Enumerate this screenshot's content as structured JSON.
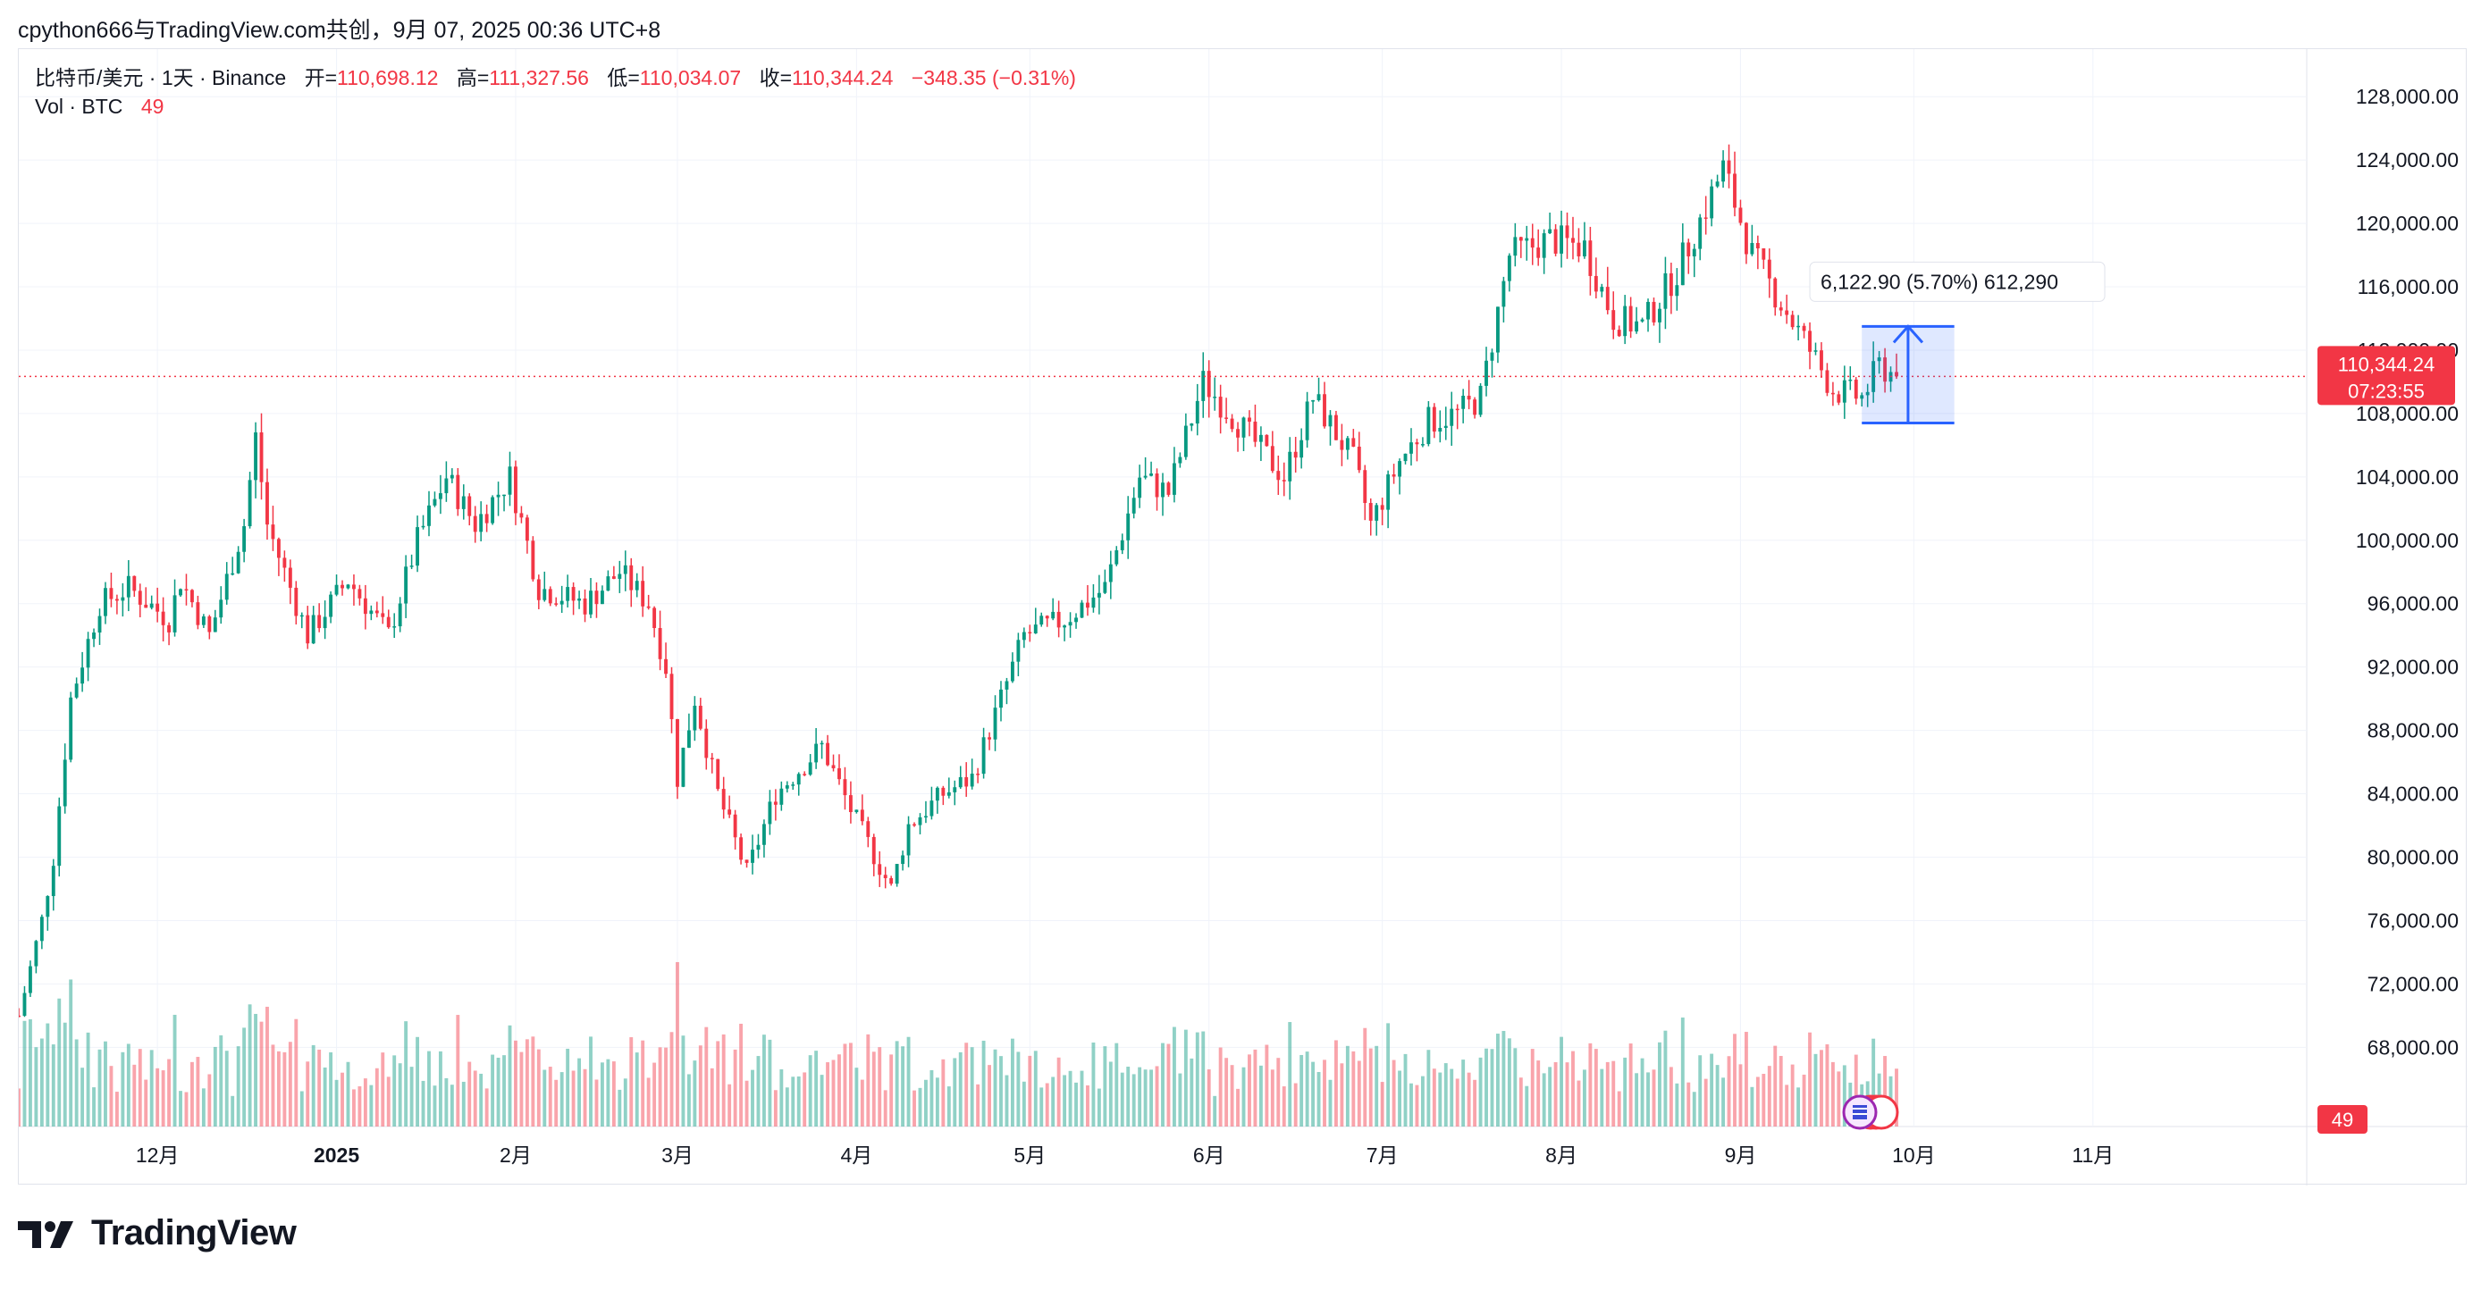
{
  "header": {
    "caption": "cpython666与TradingView.com共创，9月 07, 2025 00:36 UTC+8"
  },
  "legend": {
    "symbol": "比特币/美元 · 1天 · Binance",
    "open_label": "开=",
    "open": "110,698.12",
    "high_label": "高=",
    "high": "111,327.56",
    "low_label": "低=",
    "low": "110,034.07",
    "close_label": "收=",
    "close": "110,344.24",
    "change": "−348.35 (−0.31%)",
    "vol_label": "Vol · BTC",
    "vol_value": "49"
  },
  "price_label": {
    "price": "110,344.24",
    "countdown": "07:23:55"
  },
  "volume_badge": "49",
  "measure_label": "6,122.90 (5.70%) 612,290",
  "brand": {
    "name": "TradingView"
  },
  "colors": {
    "up": "#089981",
    "down": "#f23645",
    "measure": "#2962ff",
    "grid": "#f0f3fa"
  },
  "chart_data": {
    "type": "candlestick",
    "timeframe": "1D",
    "y_axis_ticks": [
      "128,000.00",
      "124,000.00",
      "120,000.00",
      "116,000.00",
      "112,000.00",
      "108,000.00",
      "104,000.00",
      "100,000.00",
      "96,000.00",
      "92,000.00",
      "88,000.00",
      "84,000.00",
      "80,000.00",
      "76,000.00",
      "72,000.00",
      "68,000.00"
    ],
    "y_tick_values": [
      128000,
      124000,
      120000,
      116000,
      112000,
      108000,
      104000,
      100000,
      96000,
      92000,
      88000,
      84000,
      80000,
      76000,
      72000,
      68000
    ],
    "x_axis_ticks": [
      "12月",
      "2025",
      "2月",
      "3月",
      "4月",
      "5月",
      "6月",
      "7月",
      "8月",
      "9月",
      "10月",
      "11月"
    ],
    "x_tick_days": [
      0,
      31,
      62,
      90,
      121,
      151,
      182,
      212,
      243,
      274,
      304,
      335
    ],
    "ylim": [
      63000,
      131000
    ],
    "x_range_days": [
      -24,
      372
    ],
    "last_close": 110344.24,
    "anchors": [
      {
        "day": -24,
        "price": 70000
      },
      {
        "day": -20,
        "price": 76000
      },
      {
        "day": -18,
        "price": 80000
      },
      {
        "day": -15,
        "price": 90000
      },
      {
        "day": -10,
        "price": 96000
      },
      {
        "day": -5,
        "price": 97000
      },
      {
        "day": 2,
        "price": 95000
      },
      {
        "day": 4,
        "price": 97500
      },
      {
        "day": 9,
        "price": 94000
      },
      {
        "day": 15,
        "price": 101000
      },
      {
        "day": 17,
        "price": 106500
      },
      {
        "day": 19,
        "price": 101000
      },
      {
        "day": 26,
        "price": 94000
      },
      {
        "day": 33,
        "price": 97500
      },
      {
        "day": 40,
        "price": 94000
      },
      {
        "day": 45,
        "price": 100000
      },
      {
        "day": 50,
        "price": 104000
      },
      {
        "day": 55,
        "price": 101000
      },
      {
        "day": 61,
        "price": 104000
      },
      {
        "day": 66,
        "price": 97000
      },
      {
        "day": 74,
        "price": 96000
      },
      {
        "day": 80,
        "price": 98000
      },
      {
        "day": 85,
        "price": 96000
      },
      {
        "day": 88,
        "price": 92000
      },
      {
        "day": 90,
        "price": 85000
      },
      {
        "day": 93,
        "price": 90000
      },
      {
        "day": 97,
        "price": 84000
      },
      {
        "day": 102,
        "price": 79000
      },
      {
        "day": 107,
        "price": 84000
      },
      {
        "day": 115,
        "price": 87000
      },
      {
        "day": 120,
        "price": 83000
      },
      {
        "day": 127,
        "price": 78000
      },
      {
        "day": 130,
        "price": 82000
      },
      {
        "day": 136,
        "price": 84000
      },
      {
        "day": 141,
        "price": 85000
      },
      {
        "day": 150,
        "price": 94000
      },
      {
        "day": 157,
        "price": 95000
      },
      {
        "day": 164,
        "price": 97000
      },
      {
        "day": 170,
        "price": 104000
      },
      {
        "day": 175,
        "price": 103000
      },
      {
        "day": 181,
        "price": 110000
      },
      {
        "day": 188,
        "price": 107000
      },
      {
        "day": 195,
        "price": 104000
      },
      {
        "day": 200,
        "price": 109000
      },
      {
        "day": 207,
        "price": 105000
      },
      {
        "day": 210,
        "price": 101000
      },
      {
        "day": 215,
        "price": 105000
      },
      {
        "day": 220,
        "price": 107500
      },
      {
        "day": 225,
        "price": 108000
      },
      {
        "day": 229,
        "price": 109000
      },
      {
        "day": 234,
        "price": 118000
      },
      {
        "day": 241,
        "price": 119000
      },
      {
        "day": 247,
        "price": 118500
      },
      {
        "day": 252,
        "price": 114000
      },
      {
        "day": 257,
        "price": 113500
      },
      {
        "day": 263,
        "price": 117000
      },
      {
        "day": 268,
        "price": 121000
      },
      {
        "day": 271,
        "price": 123500
      },
      {
        "day": 276,
        "price": 118000
      },
      {
        "day": 281,
        "price": 115000
      },
      {
        "day": 286,
        "price": 112000
      },
      {
        "day": 290,
        "price": 109500
      },
      {
        "day": 295,
        "price": 109000
      },
      {
        "day": 298,
        "price": 111000
      },
      {
        "day": 301,
        "price": 110344
      }
    ],
    "volume_scale": "relative, peak ~ 75 BTC-units at 2025-03 / 2025-04 sell-offs",
    "measure": {
      "from_price": 107400,
      "to_price": 113500,
      "change": "6,122.90",
      "percent": "5.70%"
    }
  }
}
